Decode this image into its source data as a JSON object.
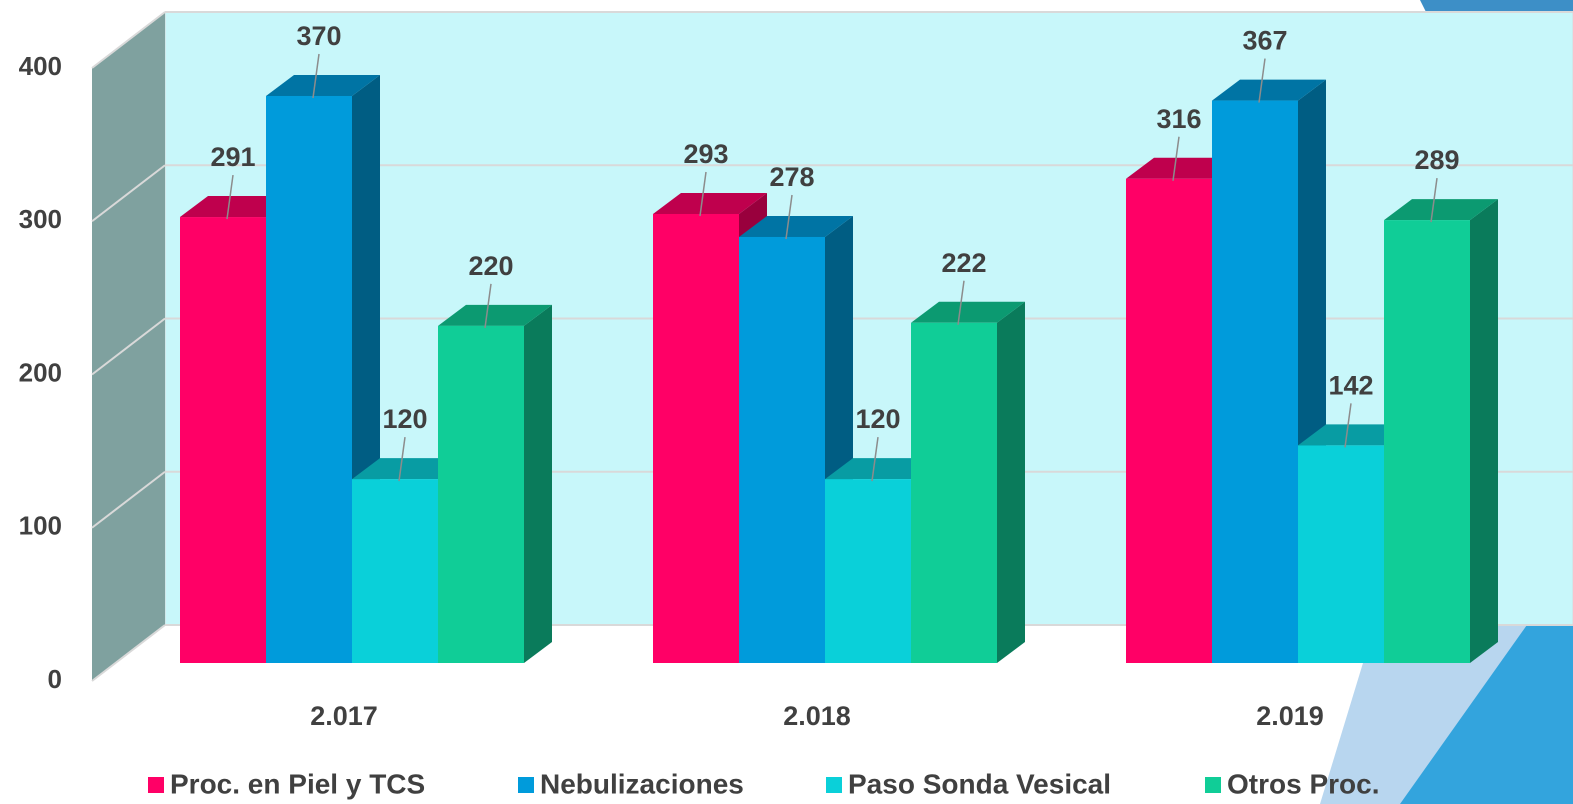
{
  "chart_data": {
    "type": "bar3d",
    "categories": [
      "2.017",
      "2.018",
      "2.019"
    ],
    "series": [
      {
        "name": "Proc. en Piel y TCS",
        "color": "#ff0066",
        "values": [
          291,
          293,
          316
        ]
      },
      {
        "name": "Nebulizaciones",
        "color": "#009bdb",
        "values": [
          370,
          278,
          367
        ]
      },
      {
        "name": "Paso Sonda Vesical",
        "color": "#0ad0d9",
        "values": [
          120,
          120,
          142
        ]
      },
      {
        "name": "Otros Proc.",
        "color": "#10cd97",
        "values": [
          220,
          222,
          289
        ]
      }
    ],
    "ylim": [
      0,
      400
    ],
    "yticks": [
      0,
      100,
      200,
      300,
      400
    ],
    "grid": true,
    "legend": "bottom"
  }
}
